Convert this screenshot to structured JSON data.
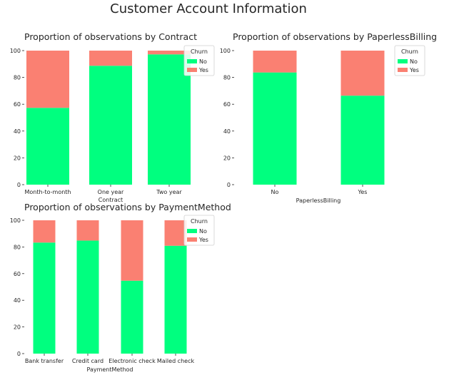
{
  "figure_title": "Customer Account Information",
  "colors": {
    "No": "#00ff7f",
    "Yes": "#fa8072"
  },
  "chart_data": [
    {
      "type": "bar",
      "stacked": true,
      "title": "Proportion of observations by Contract",
      "xlabel": "Contract",
      "ylabel": "",
      "ylim": [
        0,
        100
      ],
      "yticks": [
        0,
        20,
        40,
        60,
        80,
        100
      ],
      "categories": [
        "Month-to-month",
        "One year",
        "Two year"
      ],
      "series": [
        {
          "name": "No",
          "values": [
            57.3,
            88.7,
            97.2
          ]
        },
        {
          "name": "Yes",
          "values": [
            42.7,
            11.3,
            2.8
          ]
        }
      ],
      "legend": {
        "title": "Churn",
        "placement": "top-right"
      },
      "grid": false
    },
    {
      "type": "bar",
      "stacked": true,
      "title": "Proportion of observations by PaperlessBilling",
      "xlabel": "PaperlessBilling",
      "ylabel": "",
      "ylim": [
        0,
        100
      ],
      "yticks": [
        0,
        20,
        40,
        60,
        80,
        100
      ],
      "categories": [
        "No",
        "Yes"
      ],
      "series": [
        {
          "name": "No",
          "values": [
            83.7,
            66.4
          ]
        },
        {
          "name": "Yes",
          "values": [
            16.3,
            33.6
          ]
        }
      ],
      "legend": {
        "title": "Churn",
        "placement": "top-right"
      },
      "grid": false
    },
    {
      "type": "bar",
      "stacked": true,
      "title": "Proportion of observations by PaymentMethod",
      "xlabel": "PaymentMethod",
      "ylabel": "",
      "ylim": [
        0,
        100
      ],
      "yticks": [
        0,
        20,
        40,
        60,
        80,
        100
      ],
      "categories": [
        "Bank transfer",
        "Credit card",
        "Electronic check",
        "Mailed check"
      ],
      "series": [
        {
          "name": "No",
          "values": [
            83.3,
            84.8,
            54.7,
            80.9
          ]
        },
        {
          "name": "Yes",
          "values": [
            16.7,
            15.2,
            45.3,
            19.1
          ]
        }
      ],
      "legend": {
        "title": "Churn",
        "placement": "top-right"
      },
      "grid": false
    }
  ]
}
